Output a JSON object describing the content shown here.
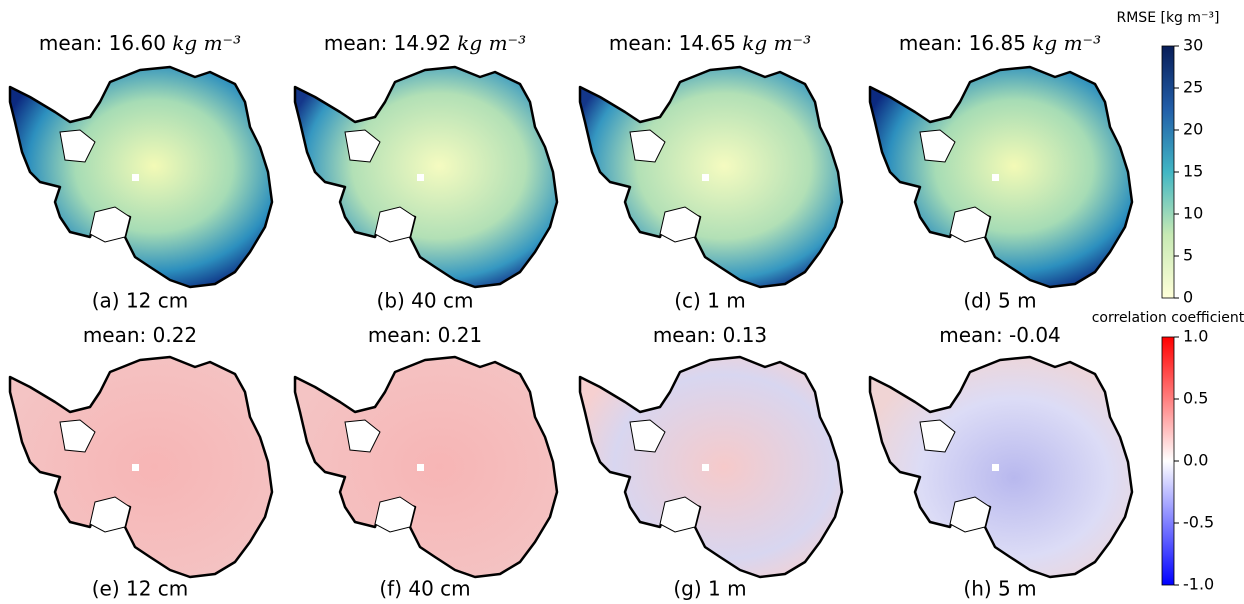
{
  "rmse": {
    "colorbar": {
      "label": "RMSE [kg m⁻³]",
      "lim": [
        0,
        30
      ],
      "ticks": [
        0,
        5,
        10,
        15,
        20,
        25,
        30
      ]
    },
    "panels": [
      {
        "title": "mean: 16.60",
        "unit": "kg m⁻³",
        "caption": "(a) 12 cm"
      },
      {
        "title": "mean: 14.92",
        "unit": "kg m⁻³",
        "caption": "(b) 40 cm"
      },
      {
        "title": "mean: 14.65",
        "unit": "kg m⁻³",
        "caption": "(c) 1 m"
      },
      {
        "title": "mean: 16.85",
        "unit": "kg m⁻³",
        "caption": "(d) 5 m"
      }
    ]
  },
  "correlation": {
    "colorbar": {
      "label": "correlation coefficient",
      "lim": [
        -1,
        1
      ],
      "ticks": [
        {
          "value": -1,
          "label": "-1.0"
        },
        {
          "value": -0.5,
          "label": "-0.5"
        },
        {
          "value": 0,
          "label": "0.0"
        },
        {
          "value": 0.5,
          "label": "0.5"
        },
        {
          "value": 1,
          "label": "1.0"
        }
      ]
    },
    "panels": [
      {
        "title": "mean: 0.22",
        "caption": "(e) 12 cm"
      },
      {
        "title": "mean: 0.21",
        "caption": "(f) 40 cm"
      },
      {
        "title": "mean: 0.13",
        "caption": "(g) 1 m"
      },
      {
        "title": "mean: -0.04",
        "caption": "(h) 5 m"
      }
    ]
  }
}
